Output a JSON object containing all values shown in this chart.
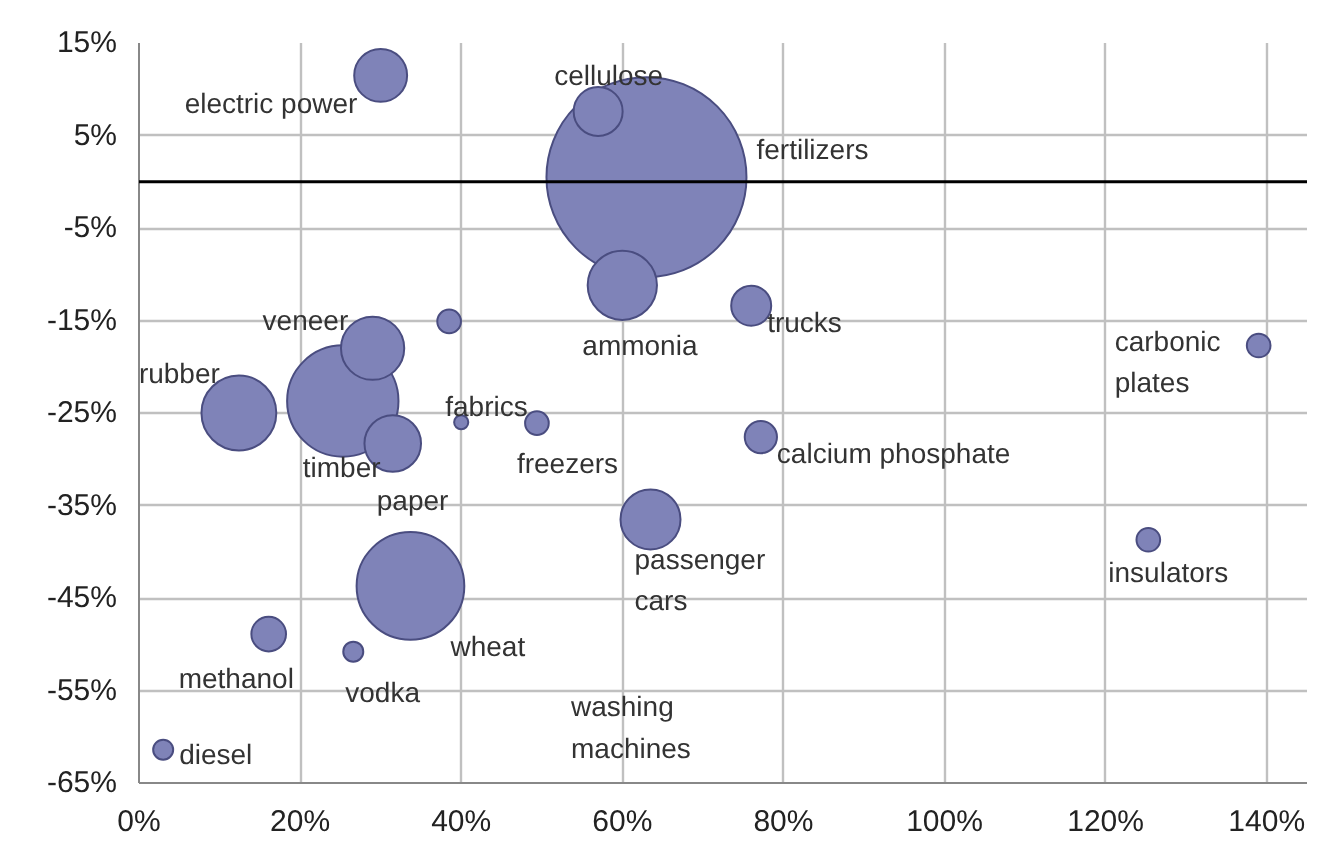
{
  "chart_data": {
    "type": "bubble",
    "series": [
      {
        "name": "electric power",
        "x": [
          30
        ],
        "values": [
          11.5
        ],
        "sizes": [
          0.07
        ]
      },
      {
        "name": "cellulose",
        "x": [
          57
        ],
        "values": [
          7.6
        ],
        "sizes": [
          0.06
        ]
      },
      {
        "name": "fertilizers",
        "x": [
          63
        ],
        "values": [
          0.5
        ],
        "sizes": [
          1
        ]
      },
      {
        "name": "ammonia",
        "x": [
          60
        ],
        "values": [
          -11.2
        ],
        "sizes": [
          0.12
        ]
      },
      {
        "name": "trucks",
        "x": [
          76
        ],
        "values": [
          -13.4
        ],
        "sizes": [
          0.04
        ]
      },
      {
        "name": "carbonic plates",
        "x": [
          139
        ],
        "values": [
          -17.7
        ],
        "sizes": [
          0.014
        ]
      },
      {
        "name": "veneer",
        "x": [
          29
        ],
        "values": [
          -18
        ],
        "sizes": [
          0.1
        ]
      },
      {
        "x": [
          38.5
        ],
        "values": [
          -15.1
        ],
        "sizes": [
          0.014
        ]
      },
      {
        "name": "rubber",
        "x": [
          12.4
        ],
        "values": [
          -25
        ],
        "sizes": [
          0.14
        ]
      },
      {
        "name": "timber",
        "x": [
          25.3
        ],
        "values": [
          -23.7
        ],
        "sizes": [
          0.31
        ]
      },
      {
        "name": "paper",
        "x": [
          31.5
        ],
        "values": [
          -28.3
        ],
        "sizes": [
          0.08
        ]
      },
      {
        "name": "fabrics",
        "x": [
          40
        ],
        "values": [
          -26
        ],
        "sizes": [
          0.005
        ]
      },
      {
        "name": "freezers",
        "x": [
          49.4
        ],
        "values": [
          -26.1
        ],
        "sizes": [
          0.014
        ]
      },
      {
        "name": "calcium phosphate",
        "x": [
          77.2
        ],
        "values": [
          -27.6
        ],
        "sizes": [
          0.026
        ]
      },
      {
        "name": "passenger cars",
        "x": [
          63.5
        ],
        "values": [
          -36.5
        ],
        "sizes": [
          0.09
        ]
      },
      {
        "name": "insulators",
        "x": [
          125.3
        ],
        "values": [
          -38.7
        ],
        "sizes": [
          0.014
        ]
      },
      {
        "name": "wheat",
        "x": [
          33.7
        ],
        "values": [
          -43.7
        ],
        "sizes": [
          0.29
        ]
      },
      {
        "name": "methanol",
        "x": [
          16.1
        ],
        "values": [
          -48.9
        ],
        "sizes": [
          0.03
        ]
      },
      {
        "name": "vodka",
        "x": [
          26.6
        ],
        "values": [
          -50.8
        ],
        "sizes": [
          0.01
        ]
      },
      {
        "name": "diesel",
        "x": [
          3
        ],
        "values": [
          -61.4
        ],
        "sizes": [
          0.01
        ]
      }
    ],
    "color": "#7f83b8",
    "annotations": [
      "washing machines"
    ],
    "xlim": [
      0,
      145
    ],
    "ylim": [
      -65,
      15
    ],
    "xticks": [
      {
        "value": 0,
        "label": "0%"
      },
      {
        "value": 20,
        "label": "20%"
      },
      {
        "value": 40,
        "label": "40%"
      },
      {
        "value": 60,
        "label": "60%"
      },
      {
        "value": 80,
        "label": "80%"
      },
      {
        "value": 100,
        "label": "100%"
      },
      {
        "value": 120,
        "label": "120%"
      },
      {
        "value": 140,
        "label": "140%"
      }
    ],
    "yticks": [
      {
        "value": 15,
        "label": "15%"
      },
      {
        "value": 5,
        "label": "5%"
      },
      {
        "value": -5,
        "label": "-5%"
      },
      {
        "value": -15,
        "label": "-15%"
      },
      {
        "value": -25,
        "label": "-25%"
      },
      {
        "value": -35,
        "label": "-35%"
      },
      {
        "value": -45,
        "label": "-45%"
      },
      {
        "value": -55,
        "label": "-55%"
      },
      {
        "value": -65,
        "label": "-65%"
      }
    ],
    "ref_lines": [
      {
        "axis": "y",
        "value": 0,
        "color": "#000000"
      }
    ],
    "grid": true
  }
}
